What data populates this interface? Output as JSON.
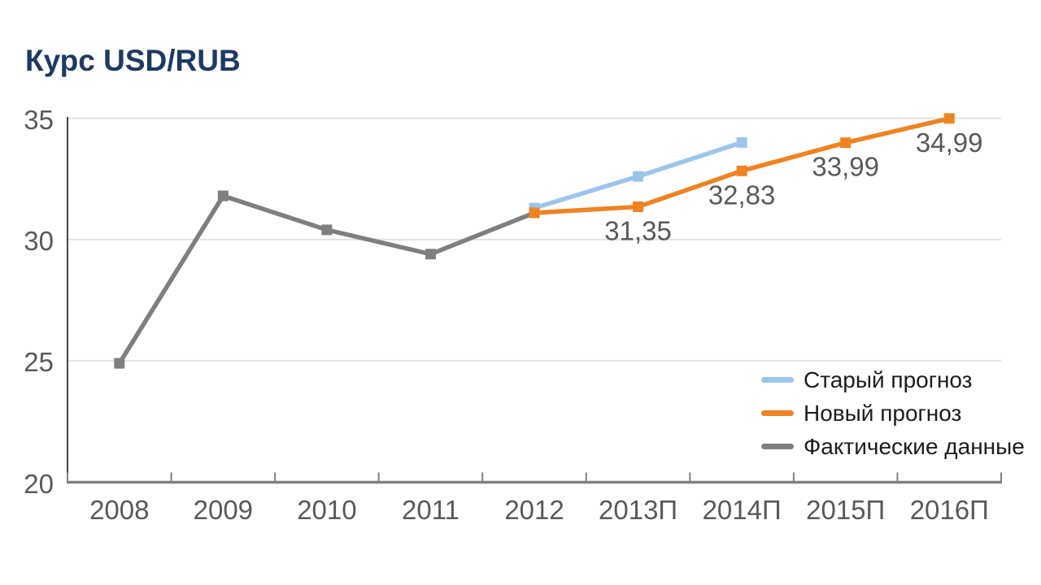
{
  "title": "Курс USD/RUB",
  "colors": {
    "title_text": "#1F3864",
    "axis_text": "#595959",
    "data_label_text": "#595959",
    "legend_text": "#1d1d1d",
    "gridline": "#E2E2E2",
    "x_axis_line": "#808080",
    "y_axis_line": "#454545",
    "tick_mark": "#808080",
    "old_forecast": "#9DC5EA",
    "new_forecast": "#EF8322",
    "actual": "#7F7F7F"
  },
  "chart_data": {
    "type": "line",
    "title": "Курс USD/RUB",
    "xlabel": "",
    "ylabel": "",
    "categories": [
      "2008",
      "2009",
      "2010",
      "2011",
      "2012",
      "2013П",
      "2014П",
      "2015П",
      "2016П"
    ],
    "ylim": [
      20,
      35
    ],
    "yticks": [
      35,
      30,
      25,
      20
    ],
    "grid": "horizontal-only",
    "legend_position": "inside-bottom-right",
    "marker": "square",
    "series": [
      {
        "key": "old-forecast",
        "name": "Старый прогноз",
        "color": "#9DC5EA",
        "values": [
          null,
          null,
          null,
          null,
          31.3,
          32.6,
          34.0,
          null,
          null
        ],
        "labels": null
      },
      {
        "key": "new-forecast",
        "name": "Новый прогноз",
        "color": "#EF8322",
        "values": [
          null,
          null,
          null,
          null,
          31.1,
          31.35,
          32.83,
          33.99,
          34.99
        ],
        "labels": [
          null,
          null,
          null,
          null,
          null,
          "31,35",
          "32,83",
          "33,99",
          "34,99"
        ]
      },
      {
        "key": "actual",
        "name": "Фактические данные",
        "color": "#7F7F7F",
        "values": [
          24.9,
          31.8,
          30.4,
          29.4,
          31.1,
          null,
          null,
          null,
          null
        ],
        "labels": null
      }
    ]
  }
}
